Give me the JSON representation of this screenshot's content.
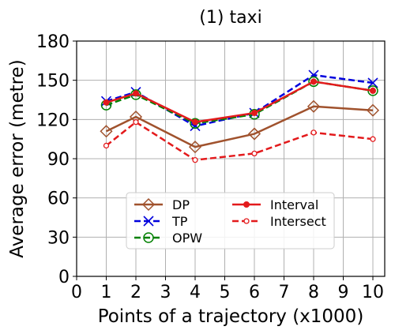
{
  "chart_data": {
    "type": "line",
    "title": "(1) taxi",
    "xlabel": "Points of a trajectory (x1000)",
    "ylabel": "Average error (metre)",
    "xlim": [
      0,
      10.4
    ],
    "ylim": [
      0,
      180
    ],
    "xticks": [
      0,
      1,
      2,
      3,
      4,
      5,
      6,
      7,
      8,
      9,
      10
    ],
    "yticks": [
      0,
      30,
      60,
      90,
      120,
      150,
      180
    ],
    "grid": true,
    "legend_position": "lower-center",
    "x": [
      1,
      2,
      4,
      6,
      8,
      10
    ],
    "series": [
      {
        "name": "DP",
        "values": [
          111,
          122,
          99,
          109,
          130,
          127
        ],
        "color": "#a0522d",
        "dash": "solid",
        "marker": "diamond-open"
      },
      {
        "name": "TP",
        "values": [
          134,
          141,
          115,
          125,
          154,
          148
        ],
        "color": "#0000dd",
        "dash": "dashed",
        "marker": "x"
      },
      {
        "name": "OPW",
        "values": [
          131,
          139,
          117,
          124,
          149,
          142
        ],
        "color": "#008000",
        "dash": "dashed",
        "marker": "circle-open"
      },
      {
        "name": "Interval",
        "values": [
          133,
          140,
          118,
          125,
          149,
          142
        ],
        "color": "#e31a1c",
        "dash": "solid",
        "marker": "dot"
      },
      {
        "name": "Intersect",
        "values": [
          100,
          118,
          89,
          94,
          110,
          105
        ],
        "color": "#e31a1c",
        "dash": "dashed",
        "marker": "dot-small"
      }
    ]
  }
}
